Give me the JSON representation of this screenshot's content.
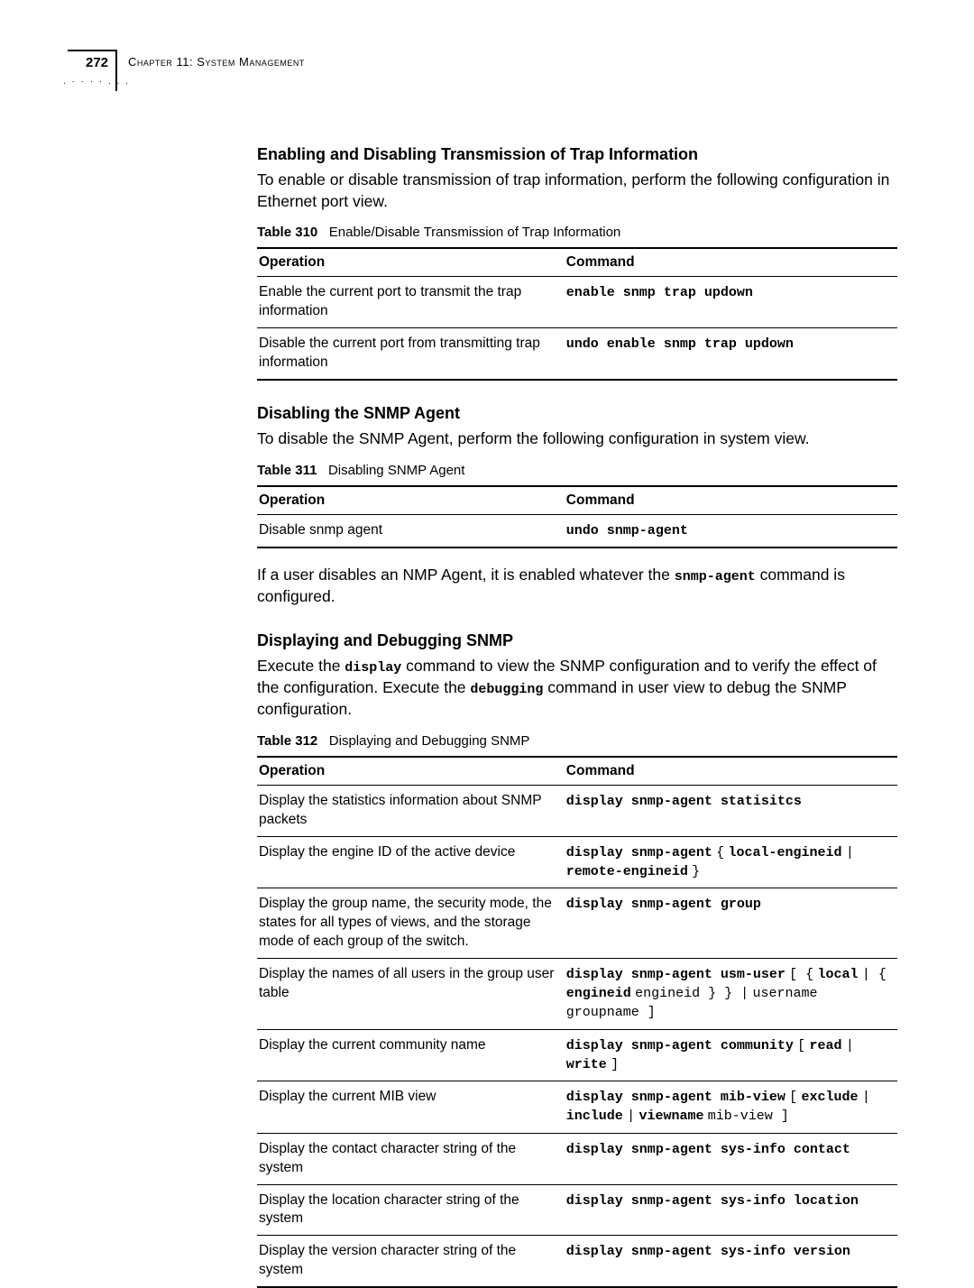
{
  "header": {
    "page_number": "272",
    "chapter_label": "Chapter 11: System Management",
    "dots": ". · · · · . . ."
  },
  "sections": [
    {
      "heading": "Enabling and Disabling Transmission of Trap Information",
      "body_pre": "To enable or disable transmission of trap information, perform the following configuration in Ethernet port view.",
      "table_num": "Table 310",
      "table_title": "Enable/Disable Transmission of Trap Information",
      "columns": [
        "Operation",
        "Command"
      ],
      "rows": [
        {
          "op": "Enable the current port to transmit the trap information",
          "cmd_html": "<span class='mono-bold'>enable snmp trap updown</span>"
        },
        {
          "op": "Disable the current port from transmitting trap information",
          "cmd_html": "<span class='mono-bold'>undo enable snmp trap updown</span>"
        }
      ]
    },
    {
      "heading": "Disabling the SNMP Agent",
      "body_pre": "To disable the SNMP Agent, perform the following configuration in system view.",
      "table_num": "Table 311",
      "table_title": "Disabling SNMP Agent",
      "columns": [
        "Operation",
        "Command"
      ],
      "rows": [
        {
          "op": "Disable snmp agent",
          "cmd_html": "<span class='mono-bold'>undo snmp-agent</span>"
        }
      ],
      "body_post_html": "If a user disables an NMP Agent, it is enabled whatever the <span class='mono-bold'>snmp-agent</span> command is configured."
    },
    {
      "heading": "Displaying and Debugging SNMP",
      "body_pre_html": "Execute the <span class='mono-bold'>display</span> command to view the SNMP configuration and to verify the effect of the configuration. Execute the <span class='mono-bold'>debugging</span> command in user view to debug the SNMP configuration.",
      "table_num": "Table 312",
      "table_title": "Displaying and Debugging SNMP",
      "columns": [
        "Operation",
        "Command"
      ],
      "rows": [
        {
          "op": "Display the statistics information about SNMP packets",
          "cmd_html": "<span class='mono-bold'>display snmp-agent statisitcs</span>"
        },
        {
          "op": "Display the engine ID of the active device",
          "cmd_html": "<span class='mono-bold'>display snmp-agent</span> <span class='mono'>{</span> <span class='mono-bold'>local-engineid</span> <span class='mono'>|</span> <span class='mono-bold'>remote-engineid</span> <span class='mono'>}</span>"
        },
        {
          "op": "Display the group name, the security mode, the states for all types of views, and the storage mode of each group of the switch.",
          "cmd_html": "<span class='mono-bold'>display snmp-agent group</span>"
        },
        {
          "op": "Display the names of all users in the group user table",
          "cmd_html": "<span class='mono-bold'>display snmp-agent usm-user</span> <span class='mono'>[ {</span> <span class='mono-bold'>local</span> <span class='mono'>| {</span> <span class='mono-bold'>engineid</span> <span class='mono'>engineid } } |</span> <span class='mono'>username groupname ]</span>"
        },
        {
          "op": "Display the current community name",
          "cmd_html": "<span class='mono-bold'>display snmp-agent community</span> <span class='mono'>[</span> <span class='mono-bold'>read</span> <span class='mono'>|</span> <span class='mono-bold'>write</span> <span class='mono'>]</span>"
        },
        {
          "op": "Display the current MIB view",
          "cmd_html": "<span class='mono-bold'>display snmp-agent mib-view</span> <span class='mono'>[</span> <span class='mono-bold'>exclude</span> <span class='mono'>|</span> <span class='mono-bold'>include</span> <span class='mono'>|</span> <span class='mono-bold'>viewname</span> <span class='mono'>mib-view ]</span>"
        },
        {
          "op": "Display the contact character string of the system",
          "cmd_html": "<span class='mono-bold'>display snmp-agent sys-info contact</span>"
        },
        {
          "op": "Display the location character string of the system",
          "cmd_html": "<span class='mono-bold'>display snmp-agent sys-info location</span>"
        },
        {
          "op": "Display the version character string of the system",
          "cmd_html": "<span class='mono-bold'>display snmp-agent sys-info version</span>"
        }
      ]
    }
  ]
}
